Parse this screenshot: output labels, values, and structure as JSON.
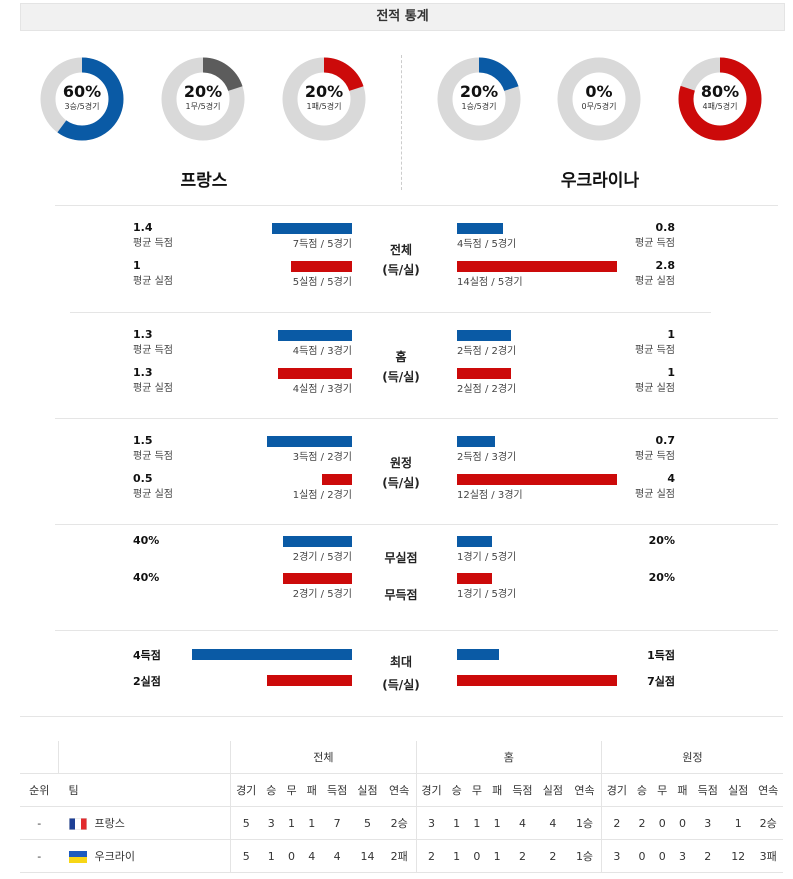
{
  "title": "전적 통계",
  "colors": {
    "blue": "#0a5aa5",
    "red": "#cc0a0a",
    "dark": "#5c5c5c",
    "track": "#d9d9d9"
  },
  "left_team": {
    "name": "프랑스",
    "donuts": [
      {
        "pct": "60%",
        "sub": "3승/5경기",
        "fraction": 0.6,
        "color": "#0a5aa5"
      },
      {
        "pct": "20%",
        "sub": "1무/5경기",
        "fraction": 0.2,
        "color": "#5c5c5c"
      },
      {
        "pct": "20%",
        "sub": "1패/5경기",
        "fraction": 0.2,
        "color": "#cc0a0a"
      }
    ]
  },
  "right_team": {
    "name": "우크라이나",
    "donuts": [
      {
        "pct": "20%",
        "sub": "1승/5경기",
        "fraction": 0.2,
        "color": "#0a5aa5"
      },
      {
        "pct": "0%",
        "sub": "0무/5경기",
        "fraction": 0.0,
        "color": "#5c5c5c"
      },
      {
        "pct": "80%",
        "sub": "4패/5경기",
        "fraction": 0.8,
        "color": "#cc0a0a"
      }
    ]
  },
  "sections": [
    {
      "cat1": "전체",
      "cat2": "(득/실)",
      "l1": {
        "val": "1.4",
        "lbl": "평균 득점",
        "bar": "7득점 / 5경기"
      },
      "l2": {
        "val": "1",
        "lbl": "평균 실점",
        "bar": "5실점 / 5경기"
      },
      "r1": {
        "val": "0.8",
        "lbl": "평균 득점",
        "bar": "4득점 / 5경기"
      },
      "r2": {
        "val": "2.8",
        "lbl": "평균 실점",
        "bar": "14실점 / 5경기"
      }
    },
    {
      "cat1": "홈",
      "cat2": "(득/실)",
      "l1": {
        "val": "1.3",
        "lbl": "평균 득점",
        "bar": "4득점 / 3경기"
      },
      "l2": {
        "val": "1.3",
        "lbl": "평균 실점",
        "bar": "4실점 / 3경기"
      },
      "r1": {
        "val": "1",
        "lbl": "평균 득점",
        "bar": "2득점 / 2경기"
      },
      "r2": {
        "val": "1",
        "lbl": "평균 실점",
        "bar": "2실점 / 2경기"
      }
    },
    {
      "cat1": "원정",
      "cat2": "(득/실)",
      "l1": {
        "val": "1.5",
        "lbl": "평균 득점",
        "bar": "3득점 / 2경기"
      },
      "l2": {
        "val": "0.5",
        "lbl": "평균 실점",
        "bar": "1실점 / 2경기"
      },
      "r1": {
        "val": "0.7",
        "lbl": "평균 득점",
        "bar": "2득점 / 3경기"
      },
      "r2": {
        "val": "4",
        "lbl": "평균 실점",
        "bar": "12실점 / 3경기"
      }
    },
    {
      "cat1": "무실점",
      "cat2": "무득점",
      "l1": {
        "val": "40%",
        "lbl": "",
        "bar": "2경기 / 5경기"
      },
      "l2": {
        "val": "40%",
        "lbl": "",
        "bar": "2경기 / 5경기"
      },
      "r1": {
        "val": "20%",
        "lbl": "",
        "bar": "1경기 / 5경기"
      },
      "r2": {
        "val": "20%",
        "lbl": "",
        "bar": "1경기 / 5경기"
      }
    },
    {
      "cat1": "최대",
      "cat2": "(득/실)",
      "l1": {
        "val": "4득점",
        "lbl": "",
        "bar": ""
      },
      "l2": {
        "val": "2실점",
        "lbl": "",
        "bar": ""
      },
      "r1": {
        "val": "1득점",
        "lbl": "",
        "bar": ""
      },
      "r2": {
        "val": "7실점",
        "lbl": "",
        "bar": ""
      }
    }
  ],
  "bar_fractions": {
    "left": [
      [
        0.5,
        0.38
      ],
      [
        0.46,
        0.46
      ],
      [
        0.53,
        0.19
      ],
      [
        0.43,
        0.43
      ],
      [
        1.0,
        0.53
      ]
    ],
    "right": [
      [
        0.29,
        1.0
      ],
      [
        0.34,
        0.34
      ],
      [
        0.24,
        1.0
      ],
      [
        0.22,
        0.22
      ],
      [
        0.26,
        1.0
      ]
    ]
  },
  "standings": {
    "groups": [
      "전체",
      "홈",
      "원정"
    ],
    "rank_header": "순위",
    "team_header": "팀",
    "columns": [
      "경기",
      "승",
      "무",
      "패",
      "득점",
      "실점",
      "연속"
    ],
    "rows": [
      {
        "rank": "-",
        "team": "프랑스",
        "flag": "france",
        "total": [
          "5",
          "3",
          "1",
          "1",
          "7",
          "5",
          "2승"
        ],
        "home": [
          "3",
          "1",
          "1",
          "1",
          "4",
          "4",
          "1승"
        ],
        "away": [
          "2",
          "2",
          "0",
          "0",
          "3",
          "1",
          "2승"
        ]
      },
      {
        "rank": "-",
        "team": "우크라이",
        "flag": "ukraine",
        "total": [
          "5",
          "1",
          "0",
          "4",
          "4",
          "14",
          "2패"
        ],
        "home": [
          "2",
          "1",
          "0",
          "1",
          "2",
          "2",
          "1승"
        ],
        "away": [
          "3",
          "0",
          "0",
          "3",
          "2",
          "12",
          "3패"
        ]
      }
    ]
  }
}
